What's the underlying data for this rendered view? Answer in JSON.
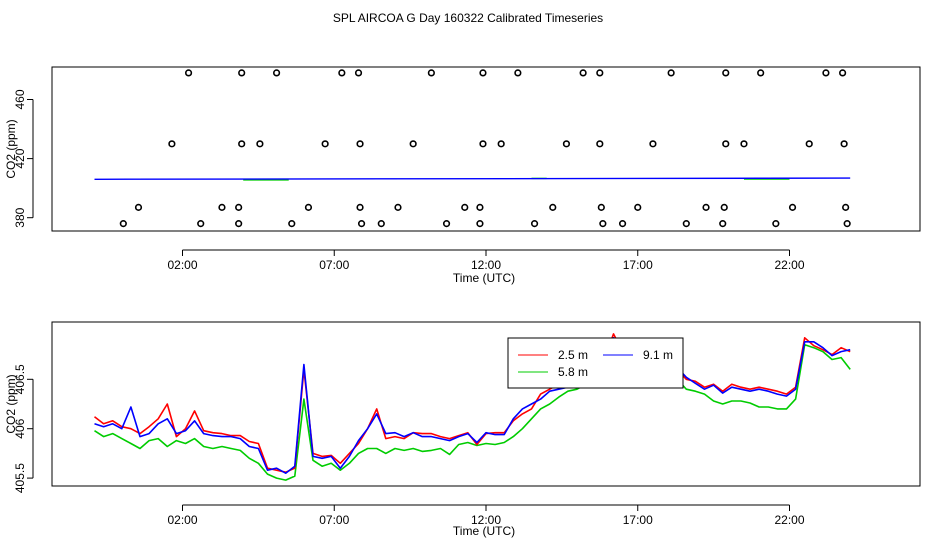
{
  "title": "SPL AIRCOA G  Day 160322  Calibrated Timeseries",
  "chart_data": [
    {
      "type": "scatter",
      "xlabel": "Time (UTC)",
      "ylabel": "CO2 (ppm)",
      "x_ticks": [
        2,
        7,
        12,
        17,
        22
      ],
      "x_tick_labels": [
        "02:00",
        "07:00",
        "12:00",
        "17:00",
        "22:00"
      ],
      "y_ticks": [
        380,
        420,
        460
      ],
      "y_tick_labels": [
        "380",
        "420",
        "460"
      ],
      "xlim": [
        -2.3,
        26.3
      ],
      "ylim": [
        371,
        482
      ],
      "flag_points": [
        {
          "x": 2.2,
          "y": 478
        },
        {
          "x": 3.95,
          "y": 478
        },
        {
          "x": 5.1,
          "y": 478
        },
        {
          "x": 7.25,
          "y": 478
        },
        {
          "x": 7.8,
          "y": 478
        },
        {
          "x": 10.2,
          "y": 478
        },
        {
          "x": 11.9,
          "y": 478
        },
        {
          "x": 13.05,
          "y": 478
        },
        {
          "x": 15.2,
          "y": 478
        },
        {
          "x": 15.75,
          "y": 478
        },
        {
          "x": 18.1,
          "y": 478
        },
        {
          "x": 19.9,
          "y": 478
        },
        {
          "x": 21.05,
          "y": 478
        },
        {
          "x": 23.2,
          "y": 478
        },
        {
          "x": 23.75,
          "y": 478
        },
        {
          "x": 1.65,
          "y": 430
        },
        {
          "x": 3.95,
          "y": 430
        },
        {
          "x": 4.55,
          "y": 430
        },
        {
          "x": 6.7,
          "y": 430
        },
        {
          "x": 7.85,
          "y": 430
        },
        {
          "x": 9.6,
          "y": 430
        },
        {
          "x": 11.9,
          "y": 430
        },
        {
          "x": 12.5,
          "y": 430
        },
        {
          "x": 14.65,
          "y": 430
        },
        {
          "x": 15.75,
          "y": 430
        },
        {
          "x": 17.5,
          "y": 430
        },
        {
          "x": 19.9,
          "y": 430
        },
        {
          "x": 20.5,
          "y": 430
        },
        {
          "x": 22.65,
          "y": 430
        },
        {
          "x": 23.8,
          "y": 430
        },
        {
          "x": 0.55,
          "y": 387
        },
        {
          "x": 3.3,
          "y": 387
        },
        {
          "x": 3.85,
          "y": 387
        },
        {
          "x": 6.15,
          "y": 387
        },
        {
          "x": 7.85,
          "y": 387
        },
        {
          "x": 9.1,
          "y": 387
        },
        {
          "x": 11.3,
          "y": 387
        },
        {
          "x": 11.8,
          "y": 387
        },
        {
          "x": 14.2,
          "y": 387
        },
        {
          "x": 15.8,
          "y": 387
        },
        {
          "x": 17.0,
          "y": 387
        },
        {
          "x": 19.25,
          "y": 387
        },
        {
          "x": 19.85,
          "y": 387
        },
        {
          "x": 22.1,
          "y": 387
        },
        {
          "x": 23.85,
          "y": 387
        },
        {
          "x": 0.05,
          "y": 376
        },
        {
          "x": 2.6,
          "y": 376
        },
        {
          "x": 3.85,
          "y": 376
        },
        {
          "x": 5.6,
          "y": 376
        },
        {
          "x": 7.9,
          "y": 376
        },
        {
          "x": 8.55,
          "y": 376
        },
        {
          "x": 10.7,
          "y": 376
        },
        {
          "x": 11.8,
          "y": 376
        },
        {
          "x": 13.6,
          "y": 376
        },
        {
          "x": 15.85,
          "y": 376
        },
        {
          "x": 16.5,
          "y": 376
        },
        {
          "x": 18.6,
          "y": 376
        },
        {
          "x": 19.8,
          "y": 376
        },
        {
          "x": 21.55,
          "y": 376
        },
        {
          "x": 23.9,
          "y": 376
        }
      ],
      "series": [
        {
          "color": "#0000ff",
          "x": [
            -0.9,
            24.0
          ],
          "y": [
            406.0,
            406.8
          ]
        },
        {
          "color": "#00cc00",
          "x": [
            4.0,
            5.5,
            13.5,
            14.0,
            20.5,
            22.0
          ],
          "y": [
            405.6,
            405.6,
            406.6,
            406.6,
            406.2,
            406.2
          ]
        }
      ]
    },
    {
      "type": "line",
      "xlabel": "Time (UTC)",
      "ylabel": "CO2 (ppm)",
      "x_ticks": [
        2,
        7,
        12,
        17,
        22
      ],
      "x_tick_labels": [
        "02:00",
        "07:00",
        "12:00",
        "17:00",
        "22:00"
      ],
      "y_ticks": [
        405.5,
        406.0,
        406.5
      ],
      "y_tick_labels": [
        "405.5",
        "406",
        "406.5"
      ],
      "xlim": [
        -2.3,
        26.3
      ],
      "ylim": [
        405.42,
        407.08
      ],
      "legend": {
        "position": "top-center"
      },
      "series": [
        {
          "name": "2.5 m",
          "color": "#ff0000"
        },
        {
          "name": "5.8 m",
          "color": "#00cc00"
        },
        {
          "name": "9.1 m",
          "color": "#0000ff"
        }
      ],
      "x": [
        -0.9,
        -0.6,
        -0.3,
        0.0,
        0.3,
        0.6,
        0.9,
        1.2,
        1.5,
        1.8,
        2.1,
        2.4,
        2.7,
        3.0,
        3.3,
        3.6,
        3.9,
        4.2,
        4.5,
        4.8,
        5.1,
        5.4,
        5.7,
        6.0,
        6.3,
        6.6,
        6.9,
        7.2,
        7.5,
        7.8,
        8.1,
        8.4,
        8.7,
        9.0,
        9.3,
        9.6,
        9.9,
        10.2,
        10.5,
        10.8,
        11.1,
        11.4,
        11.7,
        12.0,
        12.3,
        12.6,
        12.9,
        13.2,
        13.5,
        13.8,
        14.1,
        14.4,
        14.7,
        15.0,
        15.3,
        15.6,
        15.9,
        16.2,
        16.5,
        16.8,
        17.1,
        17.4,
        17.7,
        18.0,
        18.3,
        18.6,
        18.9,
        19.2,
        19.5,
        19.8,
        20.1,
        20.4,
        20.7,
        21.0,
        21.3,
        21.6,
        21.9,
        22.2,
        22.5,
        22.8,
        23.1,
        23.4,
        23.7,
        24.0
      ],
      "values_2_5m": [
        406.12,
        406.05,
        406.08,
        406.02,
        406.0,
        405.95,
        406.02,
        406.1,
        406.25,
        405.92,
        406.0,
        406.18,
        405.98,
        405.96,
        405.95,
        405.93,
        405.93,
        405.87,
        405.85,
        405.6,
        405.58,
        405.56,
        405.6,
        406.6,
        405.75,
        405.72,
        405.73,
        405.65,
        405.75,
        405.85,
        406.0,
        406.2,
        405.9,
        405.92,
        405.9,
        405.96,
        405.95,
        405.95,
        405.92,
        405.9,
        405.93,
        405.96,
        405.84,
        405.95,
        405.96,
        405.96,
        406.08,
        406.15,
        406.2,
        406.35,
        406.4,
        406.45,
        406.47,
        406.5,
        406.55,
        406.6,
        406.7,
        406.96,
        406.78,
        406.74,
        406.72,
        406.74,
        406.78,
        406.72,
        406.6,
        406.5,
        406.48,
        406.42,
        406.45,
        406.38,
        406.45,
        406.42,
        406.4,
        406.42,
        406.4,
        406.38,
        406.35,
        406.42,
        406.92,
        406.84,
        406.8,
        406.75,
        406.82,
        406.78
      ],
      "values_5_8m": [
        405.98,
        405.92,
        405.95,
        405.9,
        405.85,
        405.8,
        405.88,
        405.9,
        405.82,
        405.88,
        405.85,
        405.9,
        405.82,
        405.8,
        405.82,
        405.8,
        405.78,
        405.7,
        405.65,
        405.54,
        405.5,
        405.48,
        405.52,
        406.3,
        405.68,
        405.62,
        405.65,
        405.58,
        405.65,
        405.75,
        405.8,
        405.8,
        405.75,
        405.8,
        405.78,
        405.8,
        405.77,
        405.78,
        405.8,
        405.74,
        405.84,
        405.86,
        405.83,
        405.85,
        405.84,
        405.86,
        405.92,
        406.0,
        406.1,
        406.2,
        406.25,
        406.32,
        406.38,
        406.4,
        406.45,
        406.5,
        406.52,
        406.88,
        406.55,
        406.66,
        406.7,
        406.7,
        406.72,
        406.62,
        406.5,
        406.4,
        406.38,
        406.35,
        406.28,
        406.25,
        406.28,
        406.28,
        406.26,
        406.22,
        406.22,
        406.2,
        406.2,
        406.3,
        406.85,
        406.82,
        406.78,
        406.7,
        406.72,
        406.6
      ],
      "values_9_1m": [
        406.05,
        406.02,
        406.05,
        406.0,
        406.22,
        405.92,
        405.95,
        406.05,
        406.1,
        405.95,
        405.98,
        406.08,
        405.95,
        405.93,
        405.92,
        405.92,
        405.9,
        405.82,
        405.8,
        405.58,
        405.6,
        405.55,
        405.62,
        406.65,
        405.72,
        405.7,
        405.72,
        405.6,
        405.72,
        405.88,
        406.0,
        406.15,
        405.95,
        405.96,
        405.92,
        405.96,
        405.92,
        405.92,
        405.9,
        405.88,
        405.92,
        405.95,
        405.86,
        405.96,
        405.94,
        405.94,
        406.1,
        406.2,
        406.25,
        406.3,
        406.38,
        406.4,
        406.42,
        406.48,
        406.52,
        406.56,
        406.68,
        406.92,
        406.7,
        406.78,
        406.74,
        406.72,
        406.76,
        406.7,
        406.62,
        406.52,
        406.46,
        406.4,
        406.44,
        406.36,
        406.42,
        406.4,
        406.38,
        406.4,
        406.38,
        406.35,
        406.33,
        406.4,
        406.88,
        406.88,
        406.82,
        406.74,
        406.78,
        406.8
      ]
    }
  ]
}
